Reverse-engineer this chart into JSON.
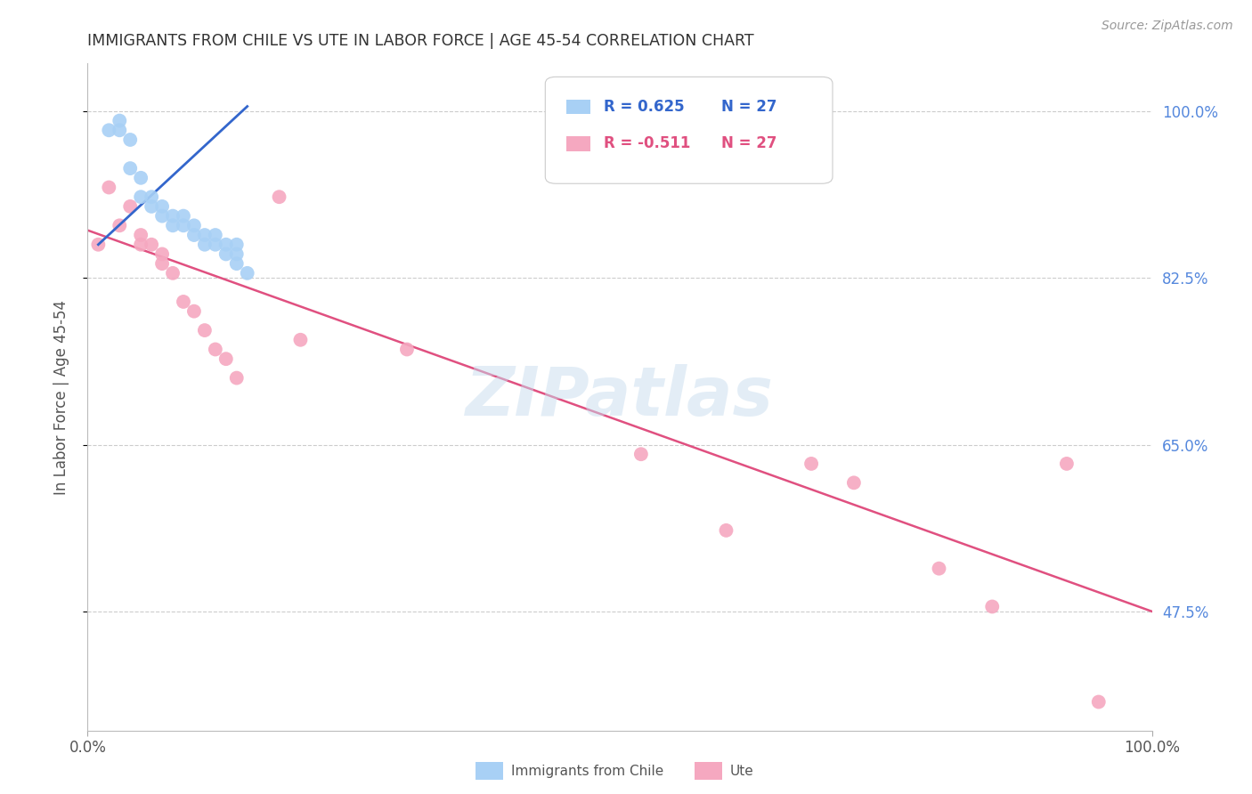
{
  "title": "IMMIGRANTS FROM CHILE VS UTE IN LABOR FORCE | AGE 45-54 CORRELATION CHART",
  "source": "Source: ZipAtlas.com",
  "ylabel": "In Labor Force | Age 45-54",
  "xlim": [
    0.0,
    1.0
  ],
  "ylim": [
    0.35,
    1.05
  ],
  "yticks": [
    0.475,
    0.65,
    0.825,
    1.0
  ],
  "ytick_labels": [
    "47.5%",
    "65.0%",
    "82.5%",
    "100.0%"
  ],
  "xtick_labels": [
    "0.0%",
    "100.0%"
  ],
  "xticks": [
    0.0,
    1.0
  ],
  "legend_r_blue": "R = 0.625",
  "legend_n_blue": "N = 27",
  "legend_r_pink": "R = -0.511",
  "legend_n_pink": "N = 27",
  "blue_color": "#A8D0F5",
  "pink_color": "#F5A8C0",
  "blue_line_color": "#3366CC",
  "pink_line_color": "#E05080",
  "grid_color": "#CCCCCC",
  "title_color": "#333333",
  "axis_label_color": "#555555",
  "right_tick_color": "#5588DD",
  "watermark_color": "#AACCEE",
  "chile_x": [
    0.02,
    0.03,
    0.03,
    0.04,
    0.04,
    0.05,
    0.05,
    0.06,
    0.06,
    0.07,
    0.07,
    0.08,
    0.08,
    0.09,
    0.09,
    0.1,
    0.1,
    0.11,
    0.11,
    0.12,
    0.12,
    0.13,
    0.13,
    0.14,
    0.14,
    0.14,
    0.15
  ],
  "chile_y": [
    0.98,
    0.99,
    0.98,
    0.97,
    0.94,
    0.93,
    0.91,
    0.91,
    0.9,
    0.9,
    0.89,
    0.89,
    0.88,
    0.89,
    0.88,
    0.88,
    0.87,
    0.87,
    0.86,
    0.87,
    0.86,
    0.86,
    0.85,
    0.86,
    0.85,
    0.84,
    0.83
  ],
  "ute_x": [
    0.01,
    0.02,
    0.03,
    0.04,
    0.05,
    0.05,
    0.06,
    0.07,
    0.07,
    0.08,
    0.09,
    0.1,
    0.11,
    0.12,
    0.13,
    0.14,
    0.18,
    0.2,
    0.3,
    0.52,
    0.6,
    0.68,
    0.72,
    0.8,
    0.85,
    0.92,
    0.95
  ],
  "ute_y": [
    0.86,
    0.92,
    0.88,
    0.9,
    0.87,
    0.86,
    0.86,
    0.85,
    0.84,
    0.83,
    0.8,
    0.79,
    0.77,
    0.75,
    0.74,
    0.72,
    0.91,
    0.76,
    0.75,
    0.64,
    0.56,
    0.63,
    0.61,
    0.52,
    0.48,
    0.63,
    0.38
  ],
  "blue_line_x": [
    0.01,
    0.15
  ],
  "blue_line_y": [
    0.86,
    1.005
  ],
  "pink_line_x": [
    0.0,
    1.0
  ],
  "pink_line_y": [
    0.875,
    0.475
  ]
}
